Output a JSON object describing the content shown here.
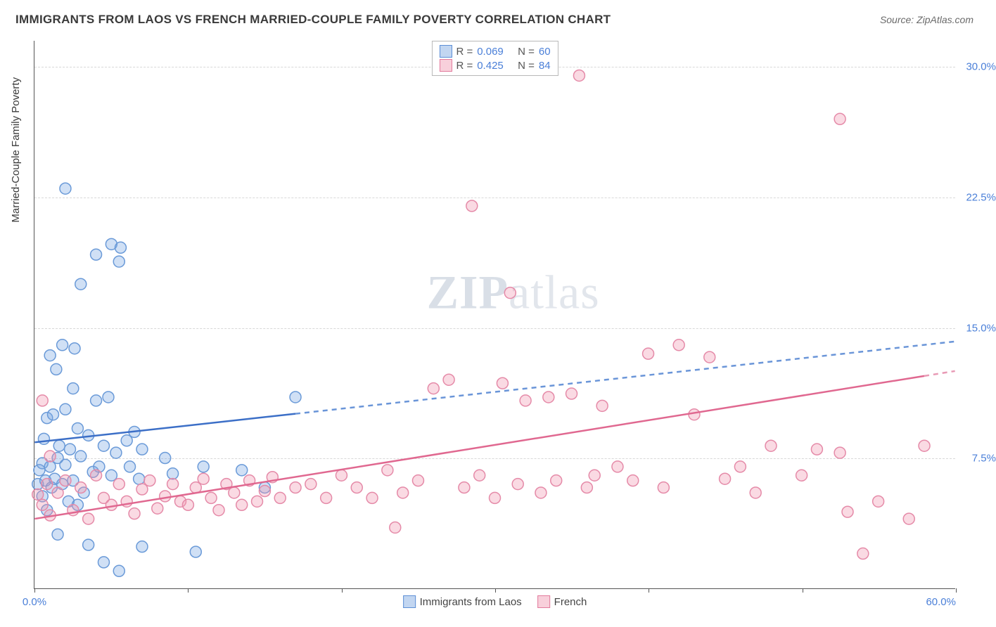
{
  "title": "IMMIGRANTS FROM LAOS VS FRENCH MARRIED-COUPLE FAMILY POVERTY CORRELATION CHART",
  "source_label": "Source:",
  "source_name": "ZipAtlas.com",
  "watermark_zip": "ZIP",
  "watermark_atlas": "atlas",
  "y_axis_label": "Married-Couple Family Poverty",
  "chart": {
    "type": "scatter",
    "background_color": "#ffffff",
    "grid_color": "#d8d8d8",
    "axis_color": "#555555",
    "xlim": [
      0,
      60
    ],
    "ylim": [
      0,
      31.5
    ],
    "x_tick_step": 10,
    "x_first_label": "0.0%",
    "x_last_label": "60.0%",
    "y_ticks": [
      7.5,
      15.0,
      22.5,
      30.0
    ],
    "y_tick_labels": [
      "7.5%",
      "15.0%",
      "22.5%",
      "30.0%"
    ],
    "marker_radius": 8,
    "marker_stroke_width": 1.5,
    "series": [
      {
        "name": "Immigrants from Laos",
        "fill_color": "rgba(120,165,225,0.35)",
        "stroke_color": "#6a9ad8",
        "R": "0.069",
        "N": "60",
        "regression": {
          "solid_color": "#3c6fc7",
          "dashed_color": "#6a95d8",
          "width": 2.5,
          "x_data_max": 17,
          "y_at_0": 8.4,
          "y_at_60": 14.2
        },
        "points": [
          [
            0.2,
            6.0
          ],
          [
            0.3,
            6.8
          ],
          [
            0.5,
            7.2
          ],
          [
            0.5,
            5.3
          ],
          [
            0.6,
            8.6
          ],
          [
            0.7,
            6.2
          ],
          [
            0.8,
            4.5
          ],
          [
            0.8,
            9.8
          ],
          [
            1.0,
            7.0
          ],
          [
            1.0,
            13.4
          ],
          [
            1.1,
            5.8
          ],
          [
            1.2,
            10.0
          ],
          [
            1.3,
            6.3
          ],
          [
            1.4,
            12.6
          ],
          [
            1.5,
            7.5
          ],
          [
            1.5,
            3.1
          ],
          [
            1.6,
            8.2
          ],
          [
            1.8,
            6.0
          ],
          [
            1.8,
            14.0
          ],
          [
            2.0,
            7.1
          ],
          [
            2.0,
            10.3
          ],
          [
            2.0,
            23.0
          ],
          [
            2.2,
            5.0
          ],
          [
            2.3,
            8.0
          ],
          [
            2.5,
            11.5
          ],
          [
            2.5,
            6.2
          ],
          [
            2.6,
            13.8
          ],
          [
            2.8,
            4.8
          ],
          [
            2.8,
            9.2
          ],
          [
            3.0,
            7.6
          ],
          [
            3.0,
            17.5
          ],
          [
            3.2,
            5.5
          ],
          [
            3.5,
            8.8
          ],
          [
            3.5,
            2.5
          ],
          [
            3.8,
            6.7
          ],
          [
            4.0,
            10.8
          ],
          [
            4.0,
            19.2
          ],
          [
            4.2,
            7.0
          ],
          [
            4.5,
            8.2
          ],
          [
            4.5,
            1.5
          ],
          [
            4.8,
            11.0
          ],
          [
            5.0,
            6.5
          ],
          [
            5.0,
            19.8
          ],
          [
            5.3,
            7.8
          ],
          [
            5.5,
            18.8
          ],
          [
            5.5,
            1.0
          ],
          [
            5.6,
            19.6
          ],
          [
            6.0,
            8.5
          ],
          [
            6.2,
            7.0
          ],
          [
            6.5,
            9.0
          ],
          [
            6.8,
            6.3
          ],
          [
            7.0,
            2.4
          ],
          [
            7.0,
            8.0
          ],
          [
            8.5,
            7.5
          ],
          [
            9.0,
            6.6
          ],
          [
            10.5,
            2.1
          ],
          [
            11.0,
            7.0
          ],
          [
            13.5,
            6.8
          ],
          [
            15.0,
            5.8
          ],
          [
            17.0,
            11.0
          ]
        ]
      },
      {
        "name": "French",
        "fill_color": "rgba(240,150,175,0.35)",
        "stroke_color": "#e58aa8",
        "R": "0.425",
        "N": "84",
        "regression": {
          "solid_color": "#e06890",
          "dashed_color": "#e89ab5",
          "width": 2.5,
          "x_data_max": 58,
          "y_at_0": 4.0,
          "y_at_60": 12.5
        },
        "points": [
          [
            0.2,
            5.4
          ],
          [
            0.5,
            10.8
          ],
          [
            0.5,
            4.8
          ],
          [
            0.8,
            6.0
          ],
          [
            1.0,
            7.6
          ],
          [
            1.0,
            4.2
          ],
          [
            1.5,
            5.5
          ],
          [
            2.0,
            6.2
          ],
          [
            2.5,
            4.5
          ],
          [
            3.0,
            5.8
          ],
          [
            3.5,
            4.0
          ],
          [
            4.0,
            6.5
          ],
          [
            4.5,
            5.2
          ],
          [
            5.0,
            4.8
          ],
          [
            5.5,
            6.0
          ],
          [
            6.0,
            5.0
          ],
          [
            6.5,
            4.3
          ],
          [
            7.0,
            5.7
          ],
          [
            7.5,
            6.2
          ],
          [
            8.0,
            4.6
          ],
          [
            8.5,
            5.3
          ],
          [
            9.0,
            6.0
          ],
          [
            9.5,
            5.0
          ],
          [
            10.0,
            4.8
          ],
          [
            10.5,
            5.8
          ],
          [
            11.0,
            6.3
          ],
          [
            11.5,
            5.2
          ],
          [
            12.0,
            4.5
          ],
          [
            12.5,
            6.0
          ],
          [
            13.0,
            5.5
          ],
          [
            13.5,
            4.8
          ],
          [
            14.0,
            6.2
          ],
          [
            14.5,
            5.0
          ],
          [
            15.0,
            5.6
          ],
          [
            15.5,
            6.4
          ],
          [
            16.0,
            5.2
          ],
          [
            17.0,
            5.8
          ],
          [
            18.0,
            6.0
          ],
          [
            19.0,
            5.2
          ],
          [
            20.0,
            6.5
          ],
          [
            21.0,
            5.8
          ],
          [
            22.0,
            5.2
          ],
          [
            23.0,
            6.8
          ],
          [
            23.5,
            3.5
          ],
          [
            24.0,
            5.5
          ],
          [
            25.0,
            6.2
          ],
          [
            26.0,
            11.5
          ],
          [
            27.0,
            12.0
          ],
          [
            28.0,
            5.8
          ],
          [
            28.5,
            22.0
          ],
          [
            29.0,
            6.5
          ],
          [
            30.0,
            5.2
          ],
          [
            30.5,
            11.8
          ],
          [
            31.0,
            17.0
          ],
          [
            31.5,
            6.0
          ],
          [
            32.0,
            10.8
          ],
          [
            33.0,
            5.5
          ],
          [
            33.5,
            11.0
          ],
          [
            34.0,
            6.2
          ],
          [
            35.0,
            11.2
          ],
          [
            35.5,
            29.5
          ],
          [
            36.0,
            5.8
          ],
          [
            36.5,
            6.5
          ],
          [
            37.0,
            10.5
          ],
          [
            38.0,
            7.0
          ],
          [
            39.0,
            6.2
          ],
          [
            40.0,
            13.5
          ],
          [
            41.0,
            5.8
          ],
          [
            42.0,
            14.0
          ],
          [
            43.0,
            10.0
          ],
          [
            44.0,
            13.3
          ],
          [
            45.0,
            6.3
          ],
          [
            46.0,
            7.0
          ],
          [
            47.0,
            5.5
          ],
          [
            48.0,
            8.2
          ],
          [
            50.0,
            6.5
          ],
          [
            51.0,
            8.0
          ],
          [
            52.5,
            27.0
          ],
          [
            53.0,
            4.4
          ],
          [
            54.0,
            2.0
          ],
          [
            55.0,
            5.0
          ],
          [
            57.0,
            4.0
          ],
          [
            58.0,
            8.2
          ],
          [
            52.5,
            7.8
          ]
        ]
      }
    ]
  },
  "legend_top": {
    "r_label": "R =",
    "n_label": "N ="
  }
}
